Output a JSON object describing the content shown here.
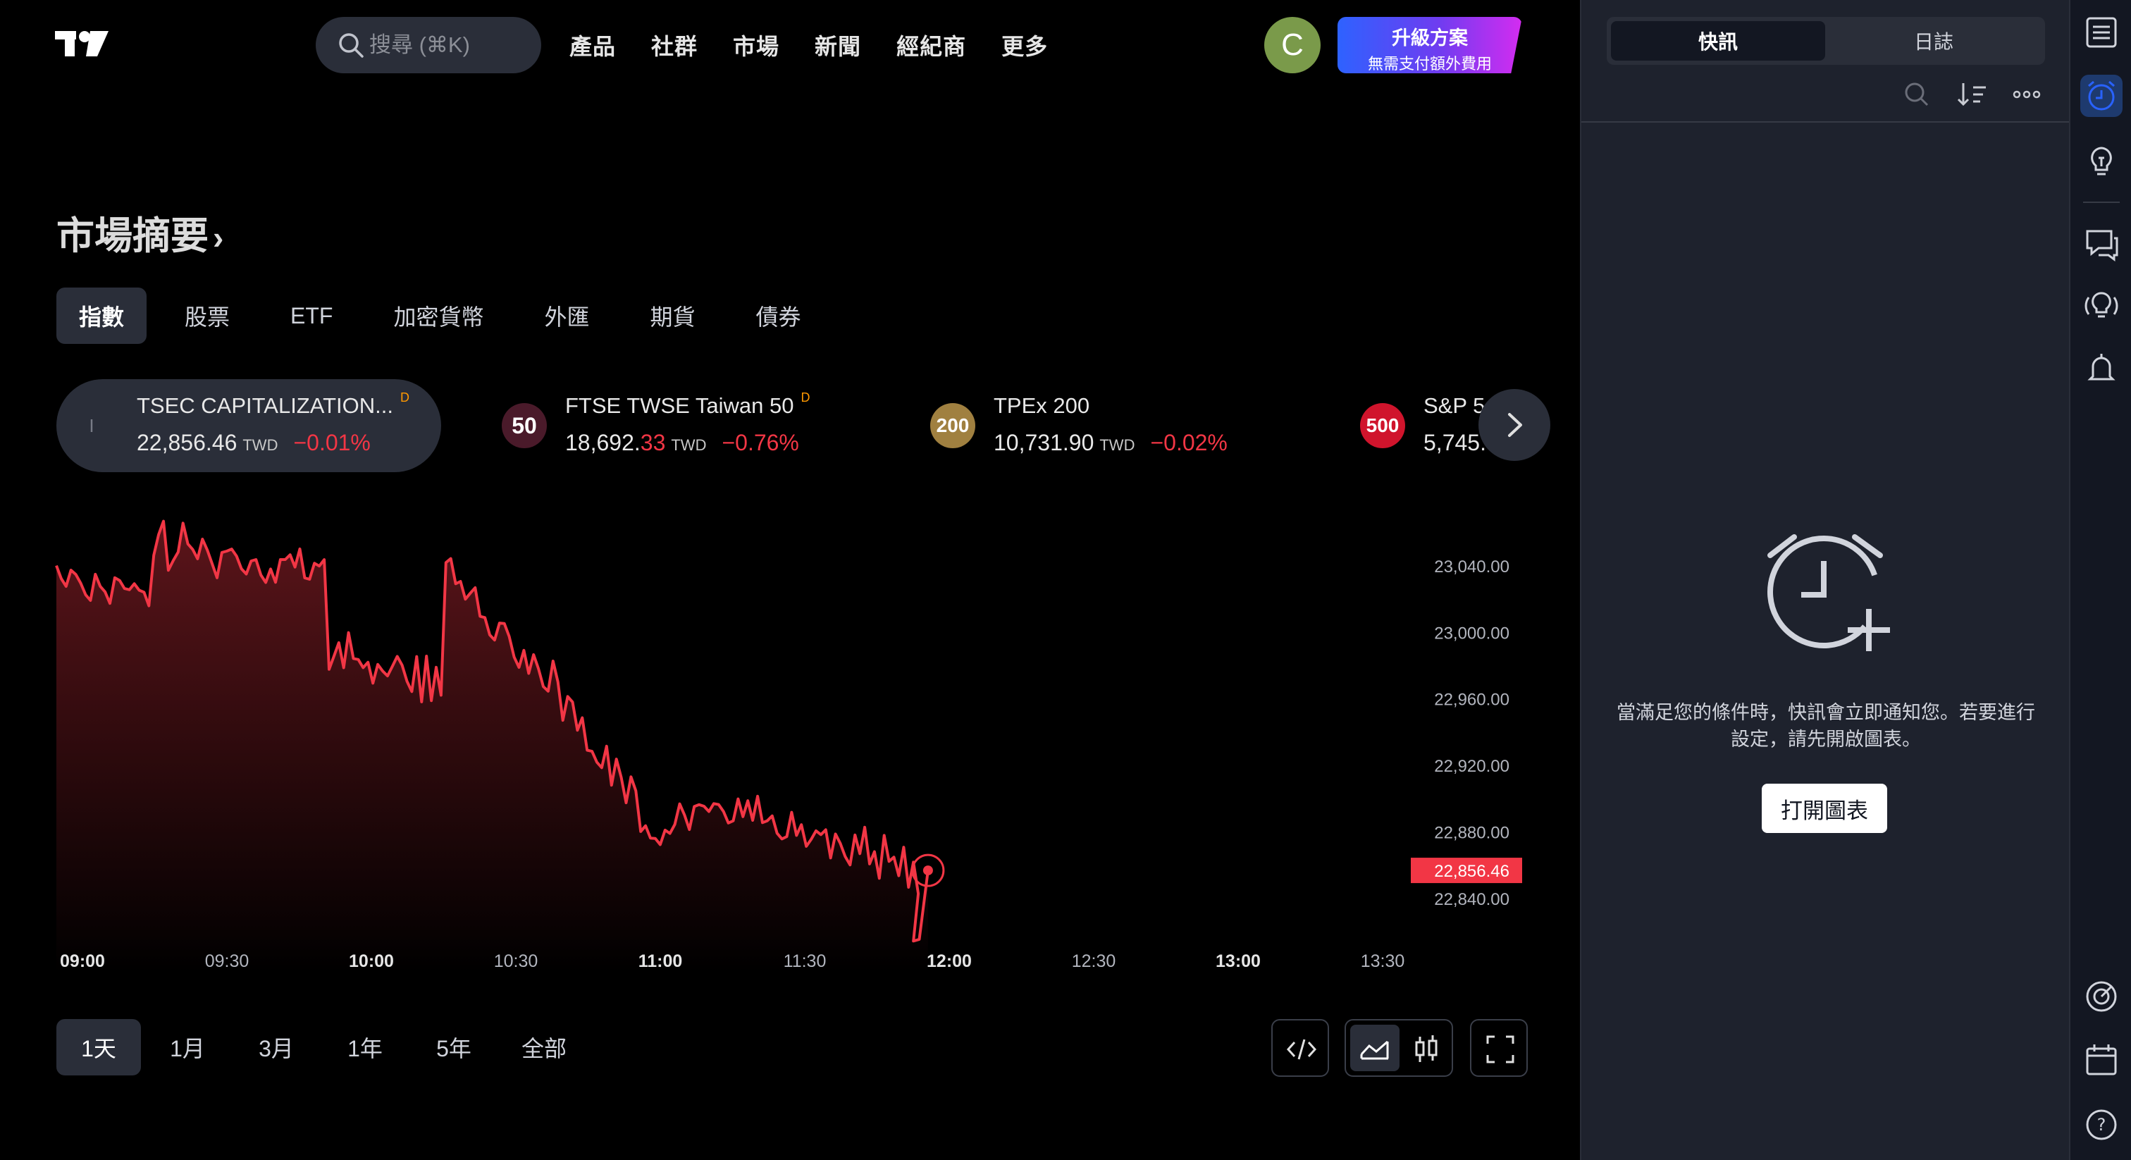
{
  "header": {
    "search_placeholder": "搜尋 (⌘K)",
    "nav": [
      "產品",
      "社群",
      "市場",
      "新聞",
      "經紀商",
      "更多"
    ],
    "avatar_letter": "C",
    "upgrade_title": "升級方案",
    "upgrade_sub": "無需支付額外費用"
  },
  "market": {
    "title": "市場摘要",
    "tabs": [
      "指數",
      "股票",
      "ETF",
      "加密貨幣",
      "外匯",
      "期貨",
      "債券"
    ],
    "active_tab": 0
  },
  "tickers": [
    {
      "badge": "I",
      "badge_color": "#3a3e49",
      "name": "TSEC CAPITALIZATION...",
      "delayed": "D",
      "price_main": "22,856.46",
      "price_red": "",
      "currency": "TWD",
      "change": "−0.01%"
    },
    {
      "badge": "50",
      "badge_color": "#4a1a2a",
      "name": "FTSE TWSE Taiwan 50",
      "delayed": "D",
      "price_main": "18,692.",
      "price_red": "33",
      "currency": "TWD",
      "change": "−0.76%"
    },
    {
      "badge": "200",
      "badge_color": "#a08040",
      "name": "TPEx 200",
      "delayed": "",
      "price_main": "10,731.90",
      "price_red": "",
      "currency": "TWD",
      "change": "−0.02%"
    },
    {
      "badge": "500",
      "badge_color": "#d0142c",
      "name": "S&P 5",
      "delayed": "",
      "price_main": "5,745.",
      "price_red": "",
      "currency": "",
      "change": ""
    }
  ],
  "chart_data": {
    "type": "area",
    "series_color": "#f23645",
    "x_ticks": [
      "09:00",
      "09:30",
      "10:00",
      "10:30",
      "11:00",
      "11:30",
      "12:00",
      "12:30",
      "13:00",
      "13:30"
    ],
    "x_ticks_bold": [
      true,
      false,
      true,
      false,
      true,
      false,
      true,
      false,
      true,
      false
    ],
    "y_ticks": [
      "23,040.00",
      "23,000.00",
      "22,960.00",
      "22,920.00",
      "22,880.00",
      "22,840.00"
    ],
    "y_tick_values": [
      23040,
      23000,
      22960,
      22920,
      22880,
      22840
    ],
    "ylim": [
      22812,
      23062
    ],
    "last_price_label": "22,856.46",
    "last_value": 22856.46,
    "segments": [
      {
        "from": [
          0,
          23040
        ],
        "to": [
          10,
          23020
        ]
      },
      {
        "from": [
          10,
          23055
        ],
        "to": [
          28,
          23040
        ]
      },
      {
        "from": [
          28,
          22990
        ],
        "to": [
          40,
          22970
        ]
      },
      {
        "from": [
          40,
          23040
        ],
        "to": [
          52,
          22965
        ]
      },
      {
        "from": [
          52,
          22960
        ],
        "to": [
          60,
          22895
        ]
      },
      {
        "from": [
          60,
          22880
        ],
        "to": [
          72,
          22905
        ]
      },
      {
        "from": [
          72,
          22895
        ],
        "to": [
          89,
          22858
        ]
      }
    ]
  },
  "ranges": [
    "1天",
    "1月",
    "3月",
    "1年",
    "5年",
    "全部"
  ],
  "active_range": 0,
  "panel": {
    "tabs": [
      "快訊",
      "日誌"
    ],
    "active_tab": 0,
    "message": "當滿足您的條件時，快訊會立即通知您。若要進行設定，請先開啟圖表。",
    "button": "打開圖表"
  }
}
